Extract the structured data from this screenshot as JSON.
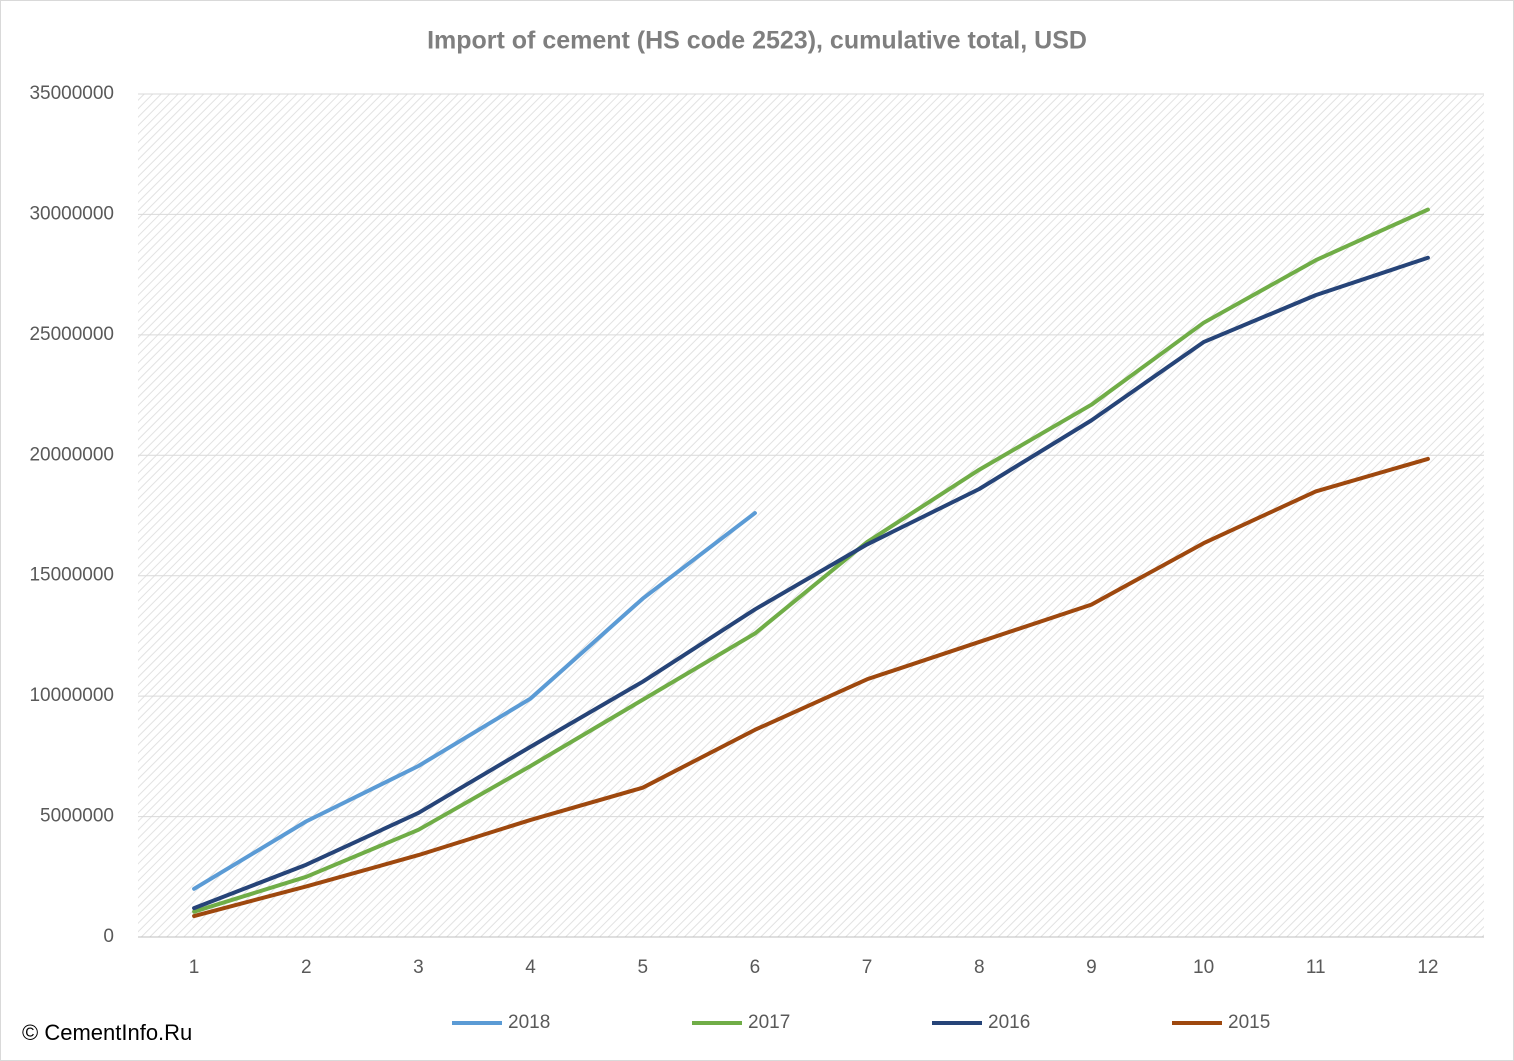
{
  "chart_data": {
    "type": "line",
    "title": "Import of cement (HS code 2523), cumulative total, USD",
    "source": "© CementInfo.Ru",
    "categories": [
      "1",
      "2",
      "3",
      "4",
      "5",
      "6",
      "7",
      "8",
      "9",
      "10",
      "11",
      "12"
    ],
    "series": [
      {
        "name": "2018",
        "color": "#5b9bd5",
        "values": [
          2000000,
          4800000,
          7100000,
          9900000,
          14050000,
          17600000,
          null,
          null,
          null,
          null,
          null,
          null
        ]
      },
      {
        "name": "2017",
        "color": "#70ad47",
        "values": [
          1050000,
          2500000,
          4450000,
          7100000,
          9850000,
          12600000,
          16400000,
          19400000,
          22100000,
          25500000,
          28100000,
          30200000
        ]
      },
      {
        "name": "2016",
        "color": "#264478",
        "values": [
          1200000,
          3000000,
          5150000,
          7900000,
          10600000,
          13600000,
          16300000,
          18600000,
          21450000,
          24700000,
          26650000,
          28200000
        ]
      },
      {
        "name": "2015",
        "color": "#9e480e",
        "values": [
          870000,
          2100000,
          3400000,
          4860000,
          6200000,
          8600000,
          10700000,
          12250000,
          13800000,
          16350000,
          18500000,
          19850000
        ]
      }
    ],
    "ylim": [
      0,
      35000000
    ],
    "yticks": [
      0,
      5000000,
      10000000,
      15000000,
      20000000,
      25000000,
      30000000,
      35000000
    ],
    "grid": true,
    "legend": "bottom"
  }
}
